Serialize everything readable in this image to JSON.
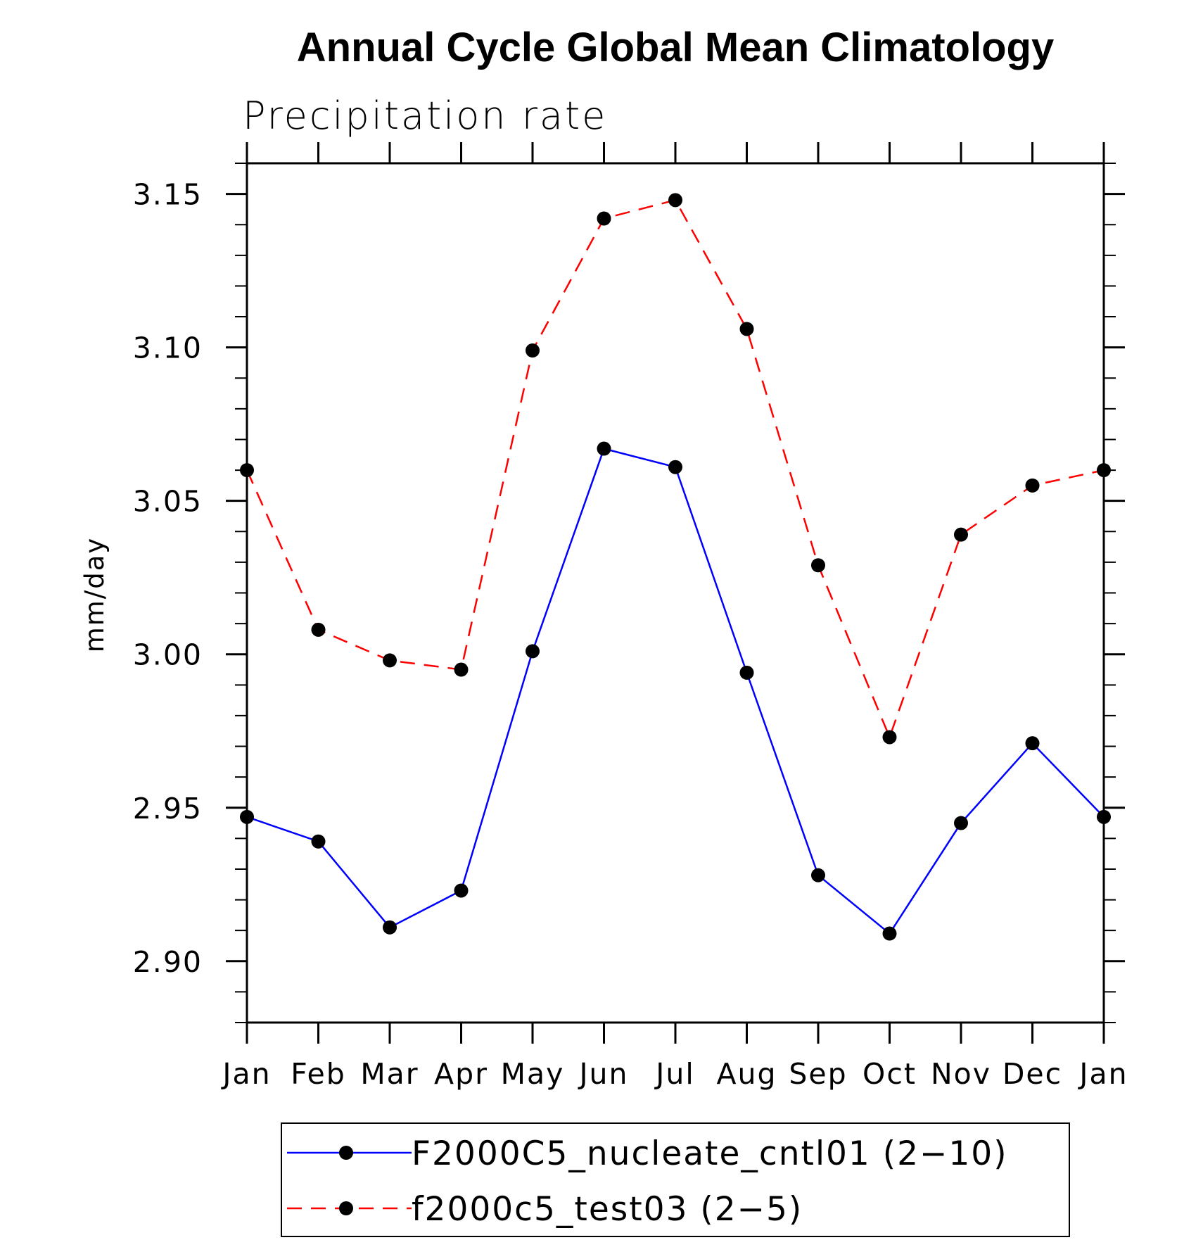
{
  "chart_data": {
    "type": "line",
    "title": "Annual Cycle Global Mean Climatology",
    "subtitle": "Precipitation rate",
    "xlabel": "",
    "ylabel": "mm/day",
    "categories": [
      "Jan",
      "Feb",
      "Mar",
      "Apr",
      "May",
      "Jun",
      "Jul",
      "Aug",
      "Sep",
      "Oct",
      "Nov",
      "Dec",
      "Jan"
    ],
    "yticks": [
      "2.90",
      "2.95",
      "3.00",
      "3.05",
      "3.10",
      "3.15"
    ],
    "ylim": [
      2.88,
      3.16
    ],
    "grid": false,
    "legend_position": "bottom",
    "series": [
      {
        "name": "F2000C5_nucleate_cntl01 (2−10)",
        "color": "#0000ff",
        "dash": "solid",
        "marker": "filled-circle",
        "values": [
          2.947,
          2.939,
          2.911,
          2.923,
          3.001,
          3.067,
          3.061,
          2.994,
          2.928,
          2.909,
          2.945,
          2.971,
          2.947
        ]
      },
      {
        "name": "f2000c5_test03 (2−5)",
        "color": "#ff0000",
        "dash": "dashed",
        "marker": "filled-circle",
        "values": [
          3.06,
          3.008,
          2.998,
          2.995,
          3.099,
          3.142,
          3.148,
          3.106,
          3.029,
          2.973,
          3.039,
          3.055,
          3.06
        ]
      }
    ]
  }
}
